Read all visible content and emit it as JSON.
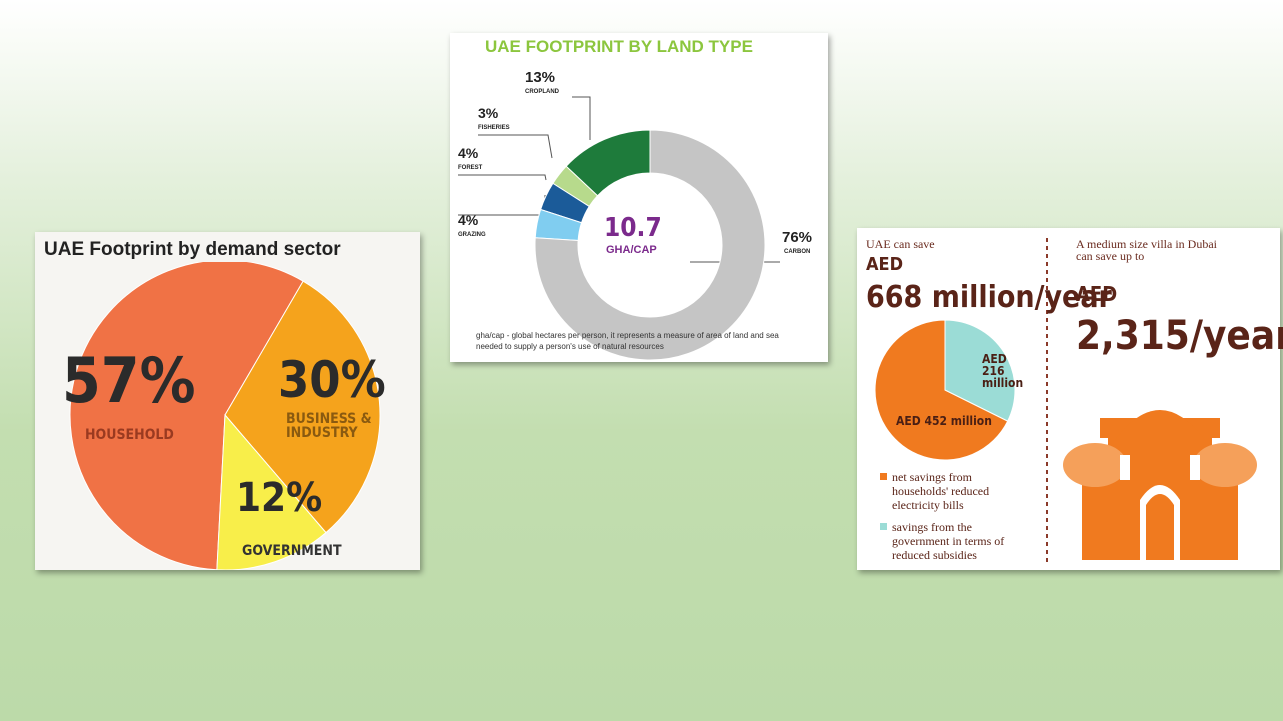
{
  "chart_data": [
    {
      "type": "pie",
      "title": "UAE Footprint by demand sector",
      "categories": [
        "HOUSEHOLD",
        "BUSINESS & INDUSTRY",
        "GOVERNMENT"
      ],
      "values": [
        57,
        30,
        12
      ],
      "value_labels": [
        "57%",
        "30%",
        "12%"
      ],
      "colors": [
        "#f07245",
        "#f5a31c",
        "#f8ee4a"
      ]
    },
    {
      "type": "donut",
      "title": "UAE FOOTPRINT BY LAND TYPE",
      "categories": [
        "CROPLAND",
        "FISHERIES",
        "FOREST",
        "GRAZING",
        "CARBON"
      ],
      "values": [
        13,
        3,
        4,
        4,
        76
      ],
      "value_labels": [
        "13%",
        "3%",
        "4%",
        "4%",
        "76%"
      ],
      "colors": [
        "#1e7b3b",
        "#b7da8c",
        "#1b5b99",
        "#80cdf0",
        "#c5c5c5"
      ],
      "center_value": 10.7,
      "center_label": "GHA/CAP",
      "note": "gha/cap - global hectares per person, it represents a measure of area of land and sea needed to supply a person's use of natural resources"
    },
    {
      "type": "pie",
      "annotations": [
        "UAE can save",
        "AED",
        "668 million/year",
        "A medium size villa in Dubai can save up to",
        "AED",
        "2,315/year"
      ],
      "categories": [
        "net savings from households' reduced electricity bills",
        "savings from the government in terms of reduced subsidies"
      ],
      "values": [
        452,
        216
      ],
      "value_labels": [
        "AED 452 million",
        "AED 216 million"
      ],
      "colors": [
        "#f07a1f",
        "#9bdcd6"
      ]
    }
  ]
}
